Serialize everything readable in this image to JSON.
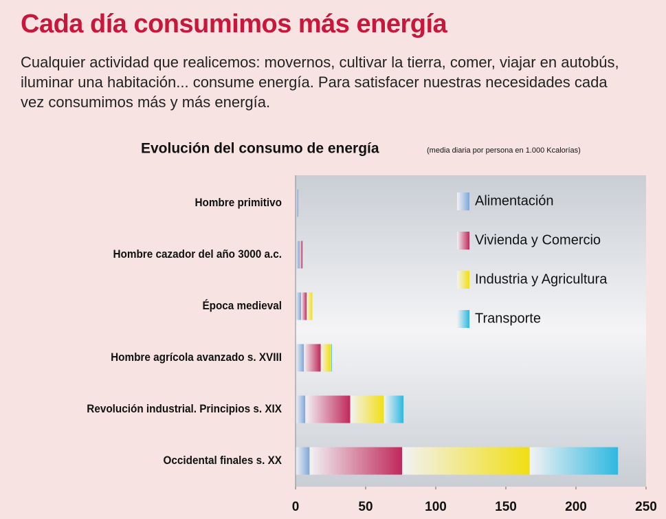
{
  "chart_data": {
    "type": "bar",
    "orientation": "horizontal",
    "stacked": true,
    "title": "Cada día consumimos más energía",
    "description": "Cualquier actividad que realicemos: movernos, cultivar la tierra, comer, viajar en autobús, iluminar una habitación... consume energía. Para satisfacer nuestras necesidades cada vez consumimos más y más energía.",
    "chart_title": "Evolución del consumo de energía",
    "subtitle": "(media diaria por persona en 1.000 Kcalorías)",
    "categories": [
      "Hombre primitivo",
      "Hombre cazador del año 3000 a.c.",
      "Época medieval",
      "Hombre agrícola avanzado s. XVIII",
      "Revolución industrial. Principios s. XIX",
      "Occidental finales s. XX"
    ],
    "series": [
      {
        "name": "Alimentación",
        "color": "#7fa6d8",
        "values": [
          2,
          3,
          4,
          6,
          7,
          10
        ]
      },
      {
        "name": "Vivienda y Comercio",
        "color": "#c0285a",
        "values": [
          0,
          2,
          4,
          12,
          32,
          66
        ]
      },
      {
        "name": "Industria y Agricultura",
        "color": "#f1de12",
        "values": [
          0,
          0,
          4,
          7,
          24,
          91
        ]
      },
      {
        "name": "Transporte",
        "color": "#2eb8e0",
        "values": [
          0,
          0,
          0,
          1,
          14,
          63
        ]
      }
    ],
    "xlim": [
      0,
      250
    ],
    "xticks": [
      0,
      50,
      100,
      150,
      200,
      250
    ],
    "grid": false,
    "legend": "top-right"
  }
}
